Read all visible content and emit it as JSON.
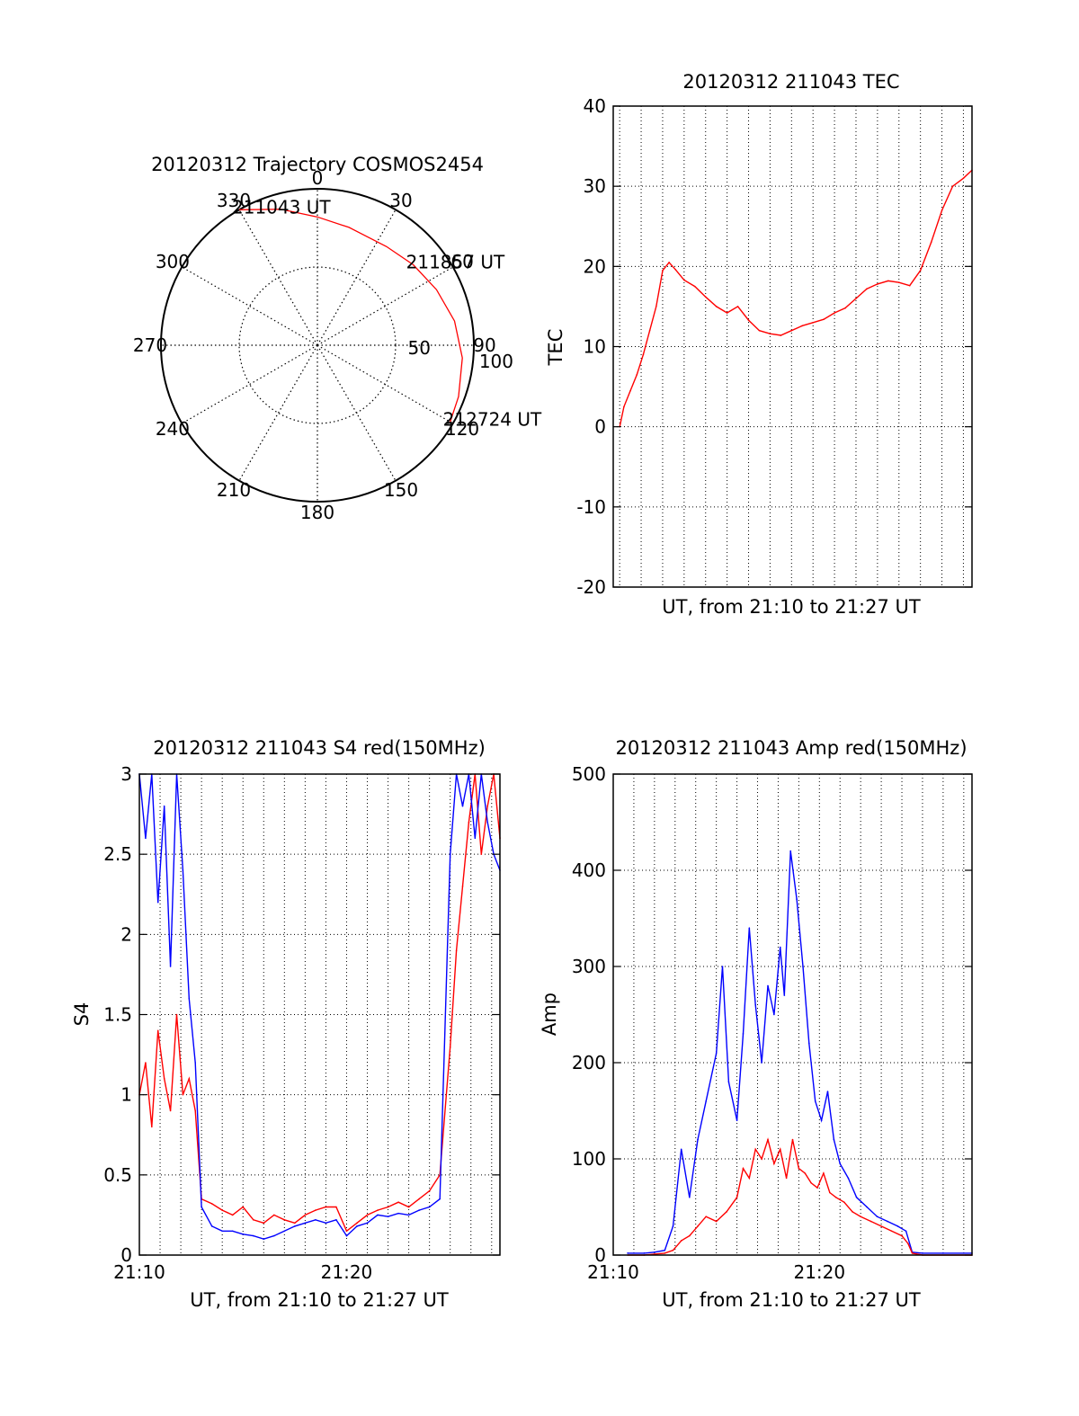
{
  "chart_data": [
    {
      "id": "trajectory",
      "type": "polar",
      "title": "20120312 Trajectory COSMOS2454",
      "azimuth_labels": [
        "0",
        "30",
        "60",
        "90",
        "120",
        "150",
        "180",
        "210",
        "240",
        "270",
        "300",
        "330"
      ],
      "radial_ring_labels": [
        "50",
        "100"
      ],
      "radial_range": [
        0,
        100
      ],
      "track": {
        "color": "#ff0000",
        "points": [
          {
            "az": 330,
            "r": 100
          },
          {
            "az": 345,
            "r": 90
          },
          {
            "az": 0,
            "r": 82
          },
          {
            "az": 15,
            "r": 78
          },
          {
            "az": 35,
            "r": 77
          },
          {
            "az": 50,
            "r": 80
          },
          {
            "az": 65,
            "r": 84
          },
          {
            "az": 80,
            "r": 89
          },
          {
            "az": 95,
            "r": 93
          },
          {
            "az": 110,
            "r": 96
          },
          {
            "az": 120,
            "r": 98
          }
        ]
      },
      "annotations": [
        {
          "text": "211043 UT",
          "az": 330,
          "r": 100
        },
        {
          "text": "211857 UT",
          "az": 50,
          "r": 80
        },
        {
          "text": "212724 UT",
          "az": 120,
          "r": 98
        }
      ]
    },
    {
      "id": "tec",
      "type": "line",
      "title": "20120312 211043 TEC",
      "xlabel": "UT, from 21:10 to 21:27 UT",
      "ylabel": "TEC",
      "xlim": [
        10.7,
        27.4
      ],
      "ylim": [
        -20,
        40
      ],
      "yticks": [
        "-20",
        "-10",
        "0",
        "10",
        "20",
        "30",
        "40"
      ],
      "grid": true,
      "series": [
        {
          "name": "TEC",
          "color": "#ff0000",
          "x": [
            11.0,
            11.2,
            11.5,
            11.8,
            12.1,
            12.4,
            12.7,
            13.0,
            13.3,
            13.6,
            14.0,
            14.5,
            15.0,
            15.5,
            16.0,
            16.5,
            17.0,
            17.5,
            18.0,
            18.5,
            19.0,
            19.5,
            20.0,
            20.5,
            21.0,
            21.5,
            22.0,
            22.5,
            23.0,
            23.5,
            24.0,
            24.5,
            25.0,
            25.5,
            26.0,
            26.5,
            27.0,
            27.4
          ],
          "y": [
            0,
            2.5,
            4.5,
            6.5,
            9,
            12,
            15,
            19.5,
            20.5,
            19.6,
            18.3,
            17.5,
            16.2,
            15.0,
            14.2,
            15.0,
            13.3,
            12.0,
            11.6,
            11.4,
            12.0,
            12.6,
            13.0,
            13.4,
            14.2,
            14.8,
            16.0,
            17.2,
            17.8,
            18.2,
            18.0,
            17.6,
            19.5,
            23.0,
            27.0,
            30.0,
            31.0,
            32.0
          ]
        }
      ]
    },
    {
      "id": "s4",
      "type": "line",
      "title": "20120312 211043 S4 red(150MHz)",
      "xlabel": "UT, from 21:10 to 21:27 UT",
      "ylabel": "S4",
      "xlim": [
        10.0,
        27.4
      ],
      "ylim": [
        0,
        3
      ],
      "yticks": [
        "0",
        "0.5",
        "1",
        "1.5",
        "2",
        "2.5",
        "3"
      ],
      "xticks": [
        {
          "value": 10,
          "label": "21:10"
        },
        {
          "value": 20,
          "label": "21:20"
        }
      ],
      "grid": true,
      "series": [
        {
          "name": "red",
          "color": "#ff0000",
          "x": [
            10.0,
            10.3,
            10.6,
            10.9,
            11.2,
            11.5,
            11.8,
            12.1,
            12.4,
            12.7,
            13.0,
            13.5,
            14.0,
            14.5,
            15.0,
            15.5,
            16.0,
            16.5,
            17.0,
            17.5,
            18.0,
            18.5,
            19.0,
            19.5,
            20.0,
            20.5,
            21.0,
            21.5,
            22.0,
            22.5,
            23.0,
            23.5,
            24.0,
            24.5,
            25.0,
            25.3,
            25.6,
            25.9,
            26.2,
            26.5,
            26.8,
            27.1,
            27.4
          ],
          "y": [
            1.0,
            1.2,
            0.8,
            1.4,
            1.1,
            0.9,
            1.5,
            1.0,
            1.1,
            0.9,
            0.35,
            0.32,
            0.28,
            0.25,
            0.3,
            0.22,
            0.2,
            0.25,
            0.22,
            0.2,
            0.25,
            0.28,
            0.3,
            0.3,
            0.15,
            0.2,
            0.25,
            0.28,
            0.3,
            0.33,
            0.3,
            0.35,
            0.4,
            0.5,
            1.3,
            1.9,
            2.3,
            2.7,
            3.0,
            2.5,
            2.8,
            3.0,
            2.6
          ]
        },
        {
          "name": "blue",
          "color": "#0000ff",
          "x": [
            10.0,
            10.3,
            10.6,
            10.9,
            11.2,
            11.5,
            11.8,
            12.1,
            12.4,
            12.7,
            13.0,
            13.5,
            14.0,
            14.5,
            15.0,
            15.5,
            16.0,
            16.5,
            17.0,
            17.5,
            18.0,
            18.5,
            19.0,
            19.5,
            20.0,
            20.5,
            21.0,
            21.5,
            22.0,
            22.5,
            23.0,
            23.5,
            24.0,
            24.5,
            25.0,
            25.3,
            25.6,
            25.9,
            26.2,
            26.5,
            26.8,
            27.1,
            27.4
          ],
          "y": [
            3.0,
            2.6,
            3.0,
            2.2,
            2.8,
            1.8,
            3.0,
            2.4,
            1.6,
            1.2,
            0.3,
            0.18,
            0.15,
            0.15,
            0.13,
            0.12,
            0.1,
            0.12,
            0.15,
            0.18,
            0.2,
            0.22,
            0.2,
            0.22,
            0.12,
            0.18,
            0.2,
            0.25,
            0.24,
            0.26,
            0.25,
            0.28,
            0.3,
            0.35,
            2.5,
            3.0,
            2.8,
            3.0,
            2.6,
            3.0,
            2.7,
            2.5,
            2.4
          ]
        }
      ]
    },
    {
      "id": "amp",
      "type": "line",
      "title": "20120312 211043 Amp red(150MHz)",
      "xlabel": "UT, from 21:10 to 21:27 UT",
      "ylabel": "Amp",
      "xlim": [
        10.0,
        27.4
      ],
      "ylim": [
        0,
        500
      ],
      "yticks": [
        "0",
        "100",
        "200",
        "300",
        "400",
        "500"
      ],
      "xticks": [
        {
          "value": 10,
          "label": "21:10"
        },
        {
          "value": 20,
          "label": "21:20"
        }
      ],
      "grid": true,
      "series": [
        {
          "name": "blue",
          "color": "#0000ff",
          "x": [
            10.7,
            11.5,
            12.0,
            12.5,
            12.9,
            13.3,
            13.7,
            14.1,
            14.5,
            15.0,
            15.3,
            15.6,
            16.0,
            16.3,
            16.6,
            16.9,
            17.2,
            17.5,
            17.8,
            18.1,
            18.3,
            18.6,
            18.9,
            19.2,
            19.5,
            19.8,
            20.1,
            20.4,
            20.7,
            21.0,
            21.4,
            21.8,
            22.3,
            22.8,
            23.3,
            23.8,
            24.2,
            24.5,
            25.0,
            26.0,
            27.4
          ],
          "y": [
            2,
            2,
            3,
            5,
            30,
            110,
            60,
            120,
            160,
            210,
            300,
            180,
            140,
            230,
            340,
            260,
            200,
            280,
            250,
            320,
            270,
            420,
            370,
            300,
            220,
            160,
            140,
            170,
            120,
            95,
            80,
            60,
            50,
            40,
            35,
            30,
            25,
            3,
            2,
            2,
            2
          ]
        },
        {
          "name": "red",
          "color": "#ff0000",
          "x": [
            10.7,
            11.5,
            12.0,
            12.5,
            12.9,
            13.3,
            13.7,
            14.1,
            14.5,
            15.0,
            15.5,
            16.0,
            16.3,
            16.6,
            16.9,
            17.2,
            17.5,
            17.8,
            18.1,
            18.4,
            18.7,
            19.0,
            19.3,
            19.6,
            19.9,
            20.2,
            20.5,
            20.8,
            21.2,
            21.6,
            22.0,
            22.5,
            23.0,
            23.5,
            24.0,
            24.3,
            24.5,
            25.0,
            27.4
          ],
          "y": [
            0,
            0,
            1,
            2,
            5,
            15,
            20,
            30,
            40,
            35,
            45,
            60,
            90,
            80,
            110,
            100,
            120,
            95,
            110,
            80,
            120,
            90,
            85,
            75,
            70,
            85,
            65,
            60,
            55,
            45,
            40,
            35,
            30,
            25,
            20,
            12,
            2,
            0,
            0
          ]
        }
      ]
    }
  ]
}
